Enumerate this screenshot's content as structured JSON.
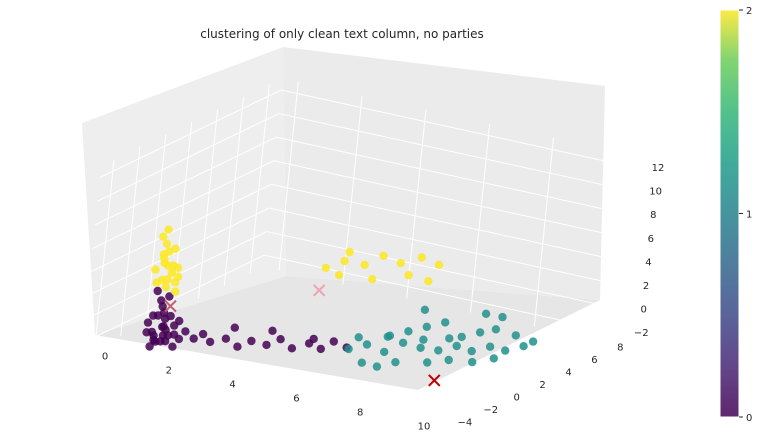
{
  "chart_data": {
    "type": "scatter",
    "title": "clustering of only clean text column, no parties",
    "xlabel": "",
    "ylabel": "",
    "zlabel": "",
    "axes": {
      "x": {
        "ticks": [
          "0",
          "2",
          "4",
          "6",
          "8",
          "10"
        ],
        "range": [
          -0.5,
          10.5
        ]
      },
      "y": {
        "ticks": [
          "−4",
          "−2",
          "0",
          "2",
          "4",
          "6",
          "8"
        ],
        "range": [
          -5,
          9
        ]
      },
      "z": {
        "ticks": [
          "−2",
          "0",
          "2",
          "4",
          "6",
          "8",
          "10",
          "12"
        ],
        "range": [
          -3,
          13
        ]
      }
    },
    "grid": true,
    "colormap": "viridis",
    "colorbar": {
      "ticks": [
        "0",
        "1",
        "2"
      ],
      "range": [
        0,
        2
      ]
    },
    "clusters": [
      {
        "label": 0,
        "color": "#440154",
        "description": "dense cluster near x 1–1.5, y −4 to −3, z −2 to 1 with a tail toward x 5–6",
        "points": [
          [
            1.2,
            -3.8,
            -1.4
          ],
          [
            1.4,
            -3.6,
            -1.0
          ],
          [
            1.0,
            -3.9,
            -0.8
          ],
          [
            1.3,
            -3.5,
            -1.6
          ],
          [
            1.5,
            -3.7,
            -0.4
          ],
          [
            1.1,
            -3.4,
            -1.8
          ],
          [
            1.6,
            -3.9,
            -1.2
          ],
          [
            0.9,
            -3.6,
            -0.2
          ],
          [
            1.3,
            -3.3,
            0.2
          ],
          [
            1.7,
            -3.5,
            -0.8
          ],
          [
            1.2,
            -4.0,
            -0.6
          ],
          [
            1.4,
            -3.2,
            -1.2
          ],
          [
            1.0,
            -3.5,
            0.4
          ],
          [
            1.5,
            -3.4,
            0.6
          ],
          [
            1.8,
            -3.8,
            -1.6
          ],
          [
            1.1,
            -3.8,
            -2.0
          ],
          [
            1.3,
            -3.9,
            0.8
          ],
          [
            1.6,
            -3.3,
            -0.2
          ],
          [
            1.2,
            -3.1,
            -0.6
          ],
          [
            1.9,
            -3.6,
            -1.0
          ],
          [
            1.4,
            -3.7,
            1.0
          ],
          [
            1.0,
            -3.3,
            -1.4
          ],
          [
            1.7,
            -3.2,
            0.2
          ],
          [
            1.5,
            -4.0,
            0.0
          ],
          [
            1.3,
            -3.6,
            1.4
          ],
          [
            1.2,
            -3.5,
            1.8
          ],
          [
            1.4,
            -3.4,
            2.2
          ],
          [
            1.1,
            -3.6,
            2.6
          ],
          [
            2.0,
            -3.4,
            -0.4
          ],
          [
            2.2,
            -3.2,
            -1.0
          ],
          [
            2.4,
            -3.0,
            -0.6
          ],
          [
            2.6,
            -2.9,
            -1.2
          ],
          [
            3.0,
            -2.7,
            -0.8
          ],
          [
            3.3,
            -2.5,
            -1.4
          ],
          [
            3.6,
            -2.2,
            -0.9
          ],
          [
            4.0,
            -2.0,
            -1.1
          ],
          [
            4.3,
            -1.7,
            -0.6
          ],
          [
            4.6,
            -1.5,
            -1.3
          ],
          [
            5.0,
            -1.2,
            -0.8
          ],
          [
            5.3,
            -1.0,
            -1.2
          ],
          [
            5.6,
            -0.8,
            -0.5
          ],
          [
            5.9,
            -0.5,
            -1.0
          ],
          [
            4.1,
            -1.9,
            0.1
          ],
          [
            3.2,
            -2.6,
            0.2
          ],
          [
            5.2,
            -1.4,
            -0.2
          ]
        ]
      },
      {
        "label": 1,
        "color": "#21918c",
        "description": "cluster spread over x 5–10, y −2 to 3, z −2 to 2",
        "points": [
          [
            6.0,
            -0.6,
            -1.0
          ],
          [
            6.4,
            -0.2,
            -0.6
          ],
          [
            6.8,
            0.2,
            -1.2
          ],
          [
            7.2,
            0.6,
            -0.4
          ],
          [
            7.6,
            1.0,
            -0.8
          ],
          [
            8.0,
            1.4,
            -1.0
          ],
          [
            8.4,
            1.8,
            -0.6
          ],
          [
            8.8,
            2.0,
            -0.9
          ],
          [
            9.2,
            2.4,
            -0.5
          ],
          [
            9.6,
            2.6,
            -0.7
          ],
          [
            10.0,
            3.0,
            -0.3
          ],
          [
            7.0,
            0.0,
            0.4
          ],
          [
            7.4,
            0.4,
            0.8
          ],
          [
            7.8,
            0.8,
            1.2
          ],
          [
            8.2,
            1.2,
            1.6
          ],
          [
            8.6,
            1.6,
            0.4
          ],
          [
            9.0,
            2.0,
            0.8
          ],
          [
            9.4,
            2.2,
            1.2
          ],
          [
            6.6,
            -1.0,
            -1.6
          ],
          [
            7.0,
            -0.8,
            -1.8
          ],
          [
            7.4,
            -0.4,
            -1.4
          ],
          [
            8.0,
            0.6,
            -1.6
          ],
          [
            8.5,
            1.0,
            -1.3
          ],
          [
            9.0,
            1.6,
            -1.5
          ],
          [
            9.5,
            2.0,
            -1.1
          ],
          [
            6.2,
            -0.4,
            0.0
          ],
          [
            6.9,
            0.1,
            0.2
          ],
          [
            7.7,
            0.9,
            0.0
          ],
          [
            8.3,
            1.4,
            0.2
          ],
          [
            9.8,
            2.8,
            0.6
          ],
          [
            10.2,
            3.2,
            0.1
          ],
          [
            8.9,
            2.6,
            2.0
          ],
          [
            9.3,
            2.9,
            1.8
          ],
          [
            7.5,
            1.3,
            2.2
          ]
        ]
      },
      {
        "label": 2,
        "color": "#fde725",
        "description": "cluster near x 1–2, y −4 to −3, z 2–8 plus scattered points around x 5–8, z 2–6",
        "points": [
          [
            1.3,
            -3.5,
            3.0
          ],
          [
            1.2,
            -3.6,
            3.6
          ],
          [
            1.4,
            -3.4,
            4.2
          ],
          [
            1.3,
            -3.5,
            4.8
          ],
          [
            1.2,
            -3.6,
            5.4
          ],
          [
            1.3,
            -3.5,
            6.0
          ],
          [
            1.2,
            -3.5,
            6.6
          ],
          [
            1.1,
            -3.6,
            7.2
          ],
          [
            1.2,
            -3.5,
            7.8
          ],
          [
            1.5,
            -3.3,
            3.4
          ],
          [
            1.6,
            -3.4,
            4.0
          ],
          [
            1.0,
            -3.7,
            4.4
          ],
          [
            1.5,
            -3.6,
            5.0
          ],
          [
            1.1,
            -3.4,
            5.6
          ],
          [
            1.4,
            -3.7,
            3.8
          ],
          [
            1.6,
            -3.5,
            2.8
          ],
          [
            1.0,
            -3.5,
            3.2
          ],
          [
            1.4,
            -3.3,
            6.2
          ],
          [
            1.3,
            -3.8,
            5.2
          ],
          [
            1.5,
            -3.2,
            4.6
          ],
          [
            4.6,
            0.6,
            4.4
          ],
          [
            5.0,
            1.0,
            5.0
          ],
          [
            5.4,
            1.6,
            4.6
          ],
          [
            5.8,
            2.0,
            5.4
          ],
          [
            4.8,
            1.2,
            3.6
          ],
          [
            6.2,
            2.4,
            4.8
          ],
          [
            6.6,
            3.0,
            5.2
          ],
          [
            7.0,
            3.4,
            4.6
          ],
          [
            5.6,
            1.8,
            3.4
          ],
          [
            6.4,
            2.6,
            3.8
          ],
          [
            5.2,
            0.8,
            6.0
          ],
          [
            6.8,
            3.2,
            3.2
          ]
        ]
      }
    ],
    "centroids": [
      {
        "label": 0,
        "position": [
          1.5,
          -3.5,
          1.5
        ],
        "marker": "x",
        "color": "#c06070"
      },
      {
        "label": 1,
        "position": [
          8.5,
          0.0,
          -2.5
        ],
        "marker": "x",
        "color": "#c00000"
      },
      {
        "label": 2,
        "position": [
          4.5,
          0.5,
          2.5
        ],
        "marker": "x",
        "color": "#f0a0b0"
      }
    ]
  }
}
